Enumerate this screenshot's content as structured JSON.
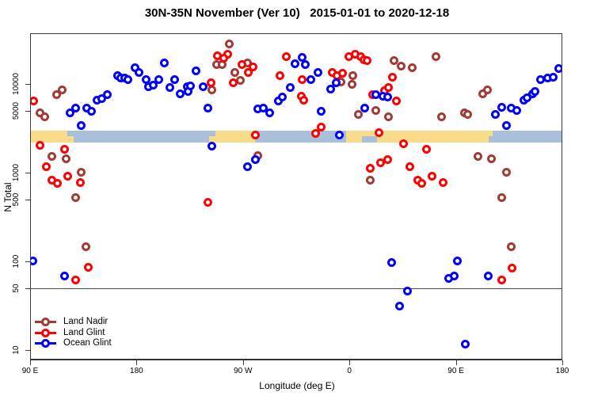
{
  "title": "30N-35N November (Ver 10)   2015-01-01 to 2020-12-18",
  "axes": {
    "x": {
      "label": "Longitude (deg E)",
      "min": 90,
      "max": 540,
      "ticks": [
        {
          "value": 90,
          "label": "90 E"
        },
        {
          "value": 180,
          "label": "180"
        },
        {
          "value": 270,
          "label": "90 W"
        },
        {
          "value": 360,
          "label": "0"
        },
        {
          "value": 450,
          "label": "90 E"
        },
        {
          "value": 540,
          "label": "180"
        }
      ]
    },
    "y": {
      "label": "N Total",
      "scale": "log10",
      "log_min": 0.884,
      "log_max": 4.571,
      "ticks": [
        {
          "value": 10,
          "label": "10"
        },
        {
          "value": 50,
          "label": "50"
        },
        {
          "value": 100,
          "label": "100"
        },
        {
          "value": 500,
          "label": "500"
        },
        {
          "value": 1000,
          "label": "1000"
        },
        {
          "value": 5000,
          "label": "5000"
        },
        {
          "value": 10000,
          "label": "10000"
        }
      ]
    }
  },
  "reference_line": {
    "y_value": 50,
    "color": "#4a4a4a"
  },
  "land_ocean_band": {
    "n_range": [
      2185,
      2970
    ],
    "colors": {
      "land": "#F8DC8C",
      "ocean": "#AABFDA"
    },
    "segments": [
      {
        "from": 90.0,
        "to": 121.5,
        "color": "land"
      },
      {
        "from": 121.5,
        "to": 241.3,
        "color": "ocean"
      },
      {
        "from": 241.3,
        "to": 280.2,
        "color": "land"
      },
      {
        "from": 280.2,
        "to": 357.2,
        "color": "ocean"
      },
      {
        "from": 357.2,
        "to": 481.1,
        "color": "land"
      },
      {
        "from": 481.1,
        "to": 540.0,
        "color": "ocean"
      }
    ],
    "fuzz": [
      {
        "from": 121.5,
        "to": 127.0,
        "color": "land",
        "half": "bottom"
      },
      {
        "from": 241.3,
        "to": 246.5,
        "color": "ocean",
        "half": "top"
      },
      {
        "from": 370.5,
        "to": 383.0,
        "color": "ocean",
        "half": "bottom"
      },
      {
        "from": 478.0,
        "to": 484.5,
        "color": "ocean",
        "half": "bottom"
      }
    ]
  },
  "legend": {
    "items": [
      {
        "label": "Land Nadir"
      },
      {
        "label": "Land Glint"
      },
      {
        "label": "Ocean Glint"
      }
    ]
  },
  "chart_data": {
    "type": "scatter",
    "title": "30N-35N November (Ver 10)   2015-01-01 to 2020-12-18",
    "xlabel": "Longitude (deg E)",
    "ylabel": "N Total",
    "x_range_deg_e": [
      90,
      540
    ],
    "y_log_range": [
      0.884,
      4.571
    ],
    "marker": "open-circle",
    "series": [
      {
        "name": "Land Nadir",
        "color": "#A03B36",
        "points": [
          [
            98.7,
            4680
          ],
          [
            102.7,
            4220
          ],
          [
            112.1,
            7500
          ],
          [
            116.8,
            8490
          ],
          [
            258.1,
            28500
          ],
          [
            247.4,
            16700
          ],
          [
            252.7,
            16700
          ],
          [
            262.8,
            13600
          ],
          [
            268.1,
            10900
          ],
          [
            273.5,
            17400
          ],
          [
            244.0,
            8490
          ],
          [
            352.5,
            10600
          ],
          [
            363.2,
            12280
          ],
          [
            362.5,
            9790
          ],
          [
            367.9,
            4490
          ],
          [
            382.6,
            5070
          ],
          [
            393.3,
            4220
          ],
          [
            398.0,
            18200
          ],
          [
            403.4,
            16000
          ],
          [
            413.4,
            15100
          ],
          [
            433.5,
            20500
          ],
          [
            473.0,
            7660
          ],
          [
            476.4,
            8490
          ],
          [
            457.0,
            4680
          ],
          [
            460.3,
            4490
          ],
          [
            438.2,
            4220
          ],
          [
            282.8,
            1570
          ],
          [
            108.7,
            1510
          ],
          [
            120.8,
            1420
          ],
          [
            132.9,
            1020
          ],
          [
            128.2,
            518
          ],
          [
            469.0,
            1510
          ],
          [
            480.4,
            1420
          ],
          [
            492.5,
            1020
          ],
          [
            488.5,
            518
          ],
          [
            137.5,
            145
          ],
          [
            496.5,
            145
          ],
          [
            377.3,
            830
          ]
        ]
      },
      {
        "name": "Land Glint",
        "color": "#FF0000",
        "points": [
          [
            93.3,
            6370
          ],
          [
            248.7,
            20900
          ],
          [
            257.4,
            21800
          ],
          [
            253.4,
            19300
          ],
          [
            268.8,
            16700
          ],
          [
            274.8,
            13600
          ],
          [
            278.8,
            15400
          ],
          [
            243.3,
            10200
          ],
          [
            262.0,
            10200
          ],
          [
            280.8,
            2680
          ],
          [
            306.5,
            20500
          ],
          [
            301.1,
            12500
          ],
          [
            319.9,
            11100
          ],
          [
            319.2,
            7340
          ],
          [
            321.2,
            6490
          ],
          [
            335.9,
            3290
          ],
          [
            331.2,
            2740
          ],
          [
            345.2,
            13600
          ],
          [
            349.2,
            12500
          ],
          [
            353.9,
            13300
          ],
          [
            359.2,
            20500
          ],
          [
            364.6,
            21800
          ],
          [
            369.3,
            20500
          ],
          [
            372.0,
            18700
          ],
          [
            374.7,
            18200
          ],
          [
            379.5,
            7500
          ],
          [
            389.5,
            8330
          ],
          [
            392.9,
            9020
          ],
          [
            396.3,
            11800
          ],
          [
            399.6,
            6370
          ],
          [
            384.9,
            2800
          ],
          [
            405.7,
            2095
          ],
          [
            425.1,
            1815
          ],
          [
            411.0,
            1155
          ],
          [
            429.8,
            920
          ],
          [
            417.7,
            830
          ],
          [
            421.0,
            765
          ],
          [
            439.0,
            780
          ],
          [
            98.7,
            2050
          ],
          [
            118.8,
            1815
          ],
          [
            103.4,
            1155
          ],
          [
            121.5,
            920
          ],
          [
            108.1,
            830
          ],
          [
            112.8,
            765
          ],
          [
            132.2,
            780
          ],
          [
            240.0,
            460
          ],
          [
            377.3,
            1130
          ],
          [
            386.6,
            1280
          ],
          [
            392.6,
            1390
          ],
          [
            138.9,
            85
          ],
          [
            497.8,
            84
          ],
          [
            128.8,
            62
          ],
          [
            488.5,
            62
          ]
        ]
      },
      {
        "name": "Ocean Glint",
        "color": "#0000FF",
        "points": [
          [
            123.5,
            4680
          ],
          [
            128.2,
            5290
          ],
          [
            138.2,
            5350
          ],
          [
            141.6,
            4870
          ],
          [
            133.5,
            3430
          ],
          [
            146.9,
            6620
          ],
          [
            150.3,
            6770
          ],
          [
            155.0,
            7500
          ],
          [
            163.7,
            12280
          ],
          [
            167.0,
            11550
          ],
          [
            170.3,
            11550
          ],
          [
            173.0,
            11300
          ],
          [
            178.4,
            15100
          ],
          [
            182.4,
            13600
          ],
          [
            188.4,
            11300
          ],
          [
            190.4,
            9210
          ],
          [
            193.8,
            9610
          ],
          [
            198.5,
            11100
          ],
          [
            203.8,
            17400
          ],
          [
            208.5,
            9020
          ],
          [
            212.5,
            11100
          ],
          [
            216.6,
            7660
          ],
          [
            222.6,
            9210
          ],
          [
            223.3,
            8160
          ],
          [
            225.9,
            9400
          ],
          [
            230.6,
            13900
          ],
          [
            236.0,
            9210
          ],
          [
            240.0,
            5350
          ],
          [
            244.0,
            2010
          ],
          [
            273.5,
            1155
          ],
          [
            280.2,
            1390
          ],
          [
            282.8,
            5180
          ],
          [
            287.5,
            5290
          ],
          [
            292.9,
            4680
          ],
          [
            299.6,
            6370
          ],
          [
            303.6,
            7190
          ],
          [
            310.3,
            9020
          ],
          [
            314.3,
            17000
          ],
          [
            319.7,
            19700
          ],
          [
            323.0,
            16700
          ],
          [
            327.7,
            11300
          ],
          [
            333.1,
            13600
          ],
          [
            336.4,
            4870
          ],
          [
            343.8,
            8830
          ],
          [
            348.5,
            10200
          ],
          [
            351.8,
            2680
          ],
          [
            373.2,
            5290
          ],
          [
            382.6,
            7500
          ],
          [
            388.0,
            7340
          ],
          [
            392.6,
            7190
          ],
          [
            483.1,
            4490
          ],
          [
            488.5,
            5420
          ],
          [
            493.1,
            3430
          ],
          [
            497.1,
            5290
          ],
          [
            501.8,
            5070
          ],
          [
            507.2,
            6620
          ],
          [
            510.5,
            7030
          ],
          [
            515.2,
            7660
          ],
          [
            517.2,
            8160
          ],
          [
            521.9,
            11300
          ],
          [
            527.3,
            11550
          ],
          [
            532.0,
            12000
          ],
          [
            537.3,
            14800
          ],
          [
            92.0,
            102
          ],
          [
            451.0,
            102
          ],
          [
            118.8,
            69
          ],
          [
            477.7,
            69
          ],
          [
            396.0,
            96
          ],
          [
            409.4,
            46
          ],
          [
            402.7,
            31
          ],
          [
            443.6,
            64
          ],
          [
            448.9,
            69
          ],
          [
            458.3,
            11.6
          ]
        ]
      }
    ]
  }
}
